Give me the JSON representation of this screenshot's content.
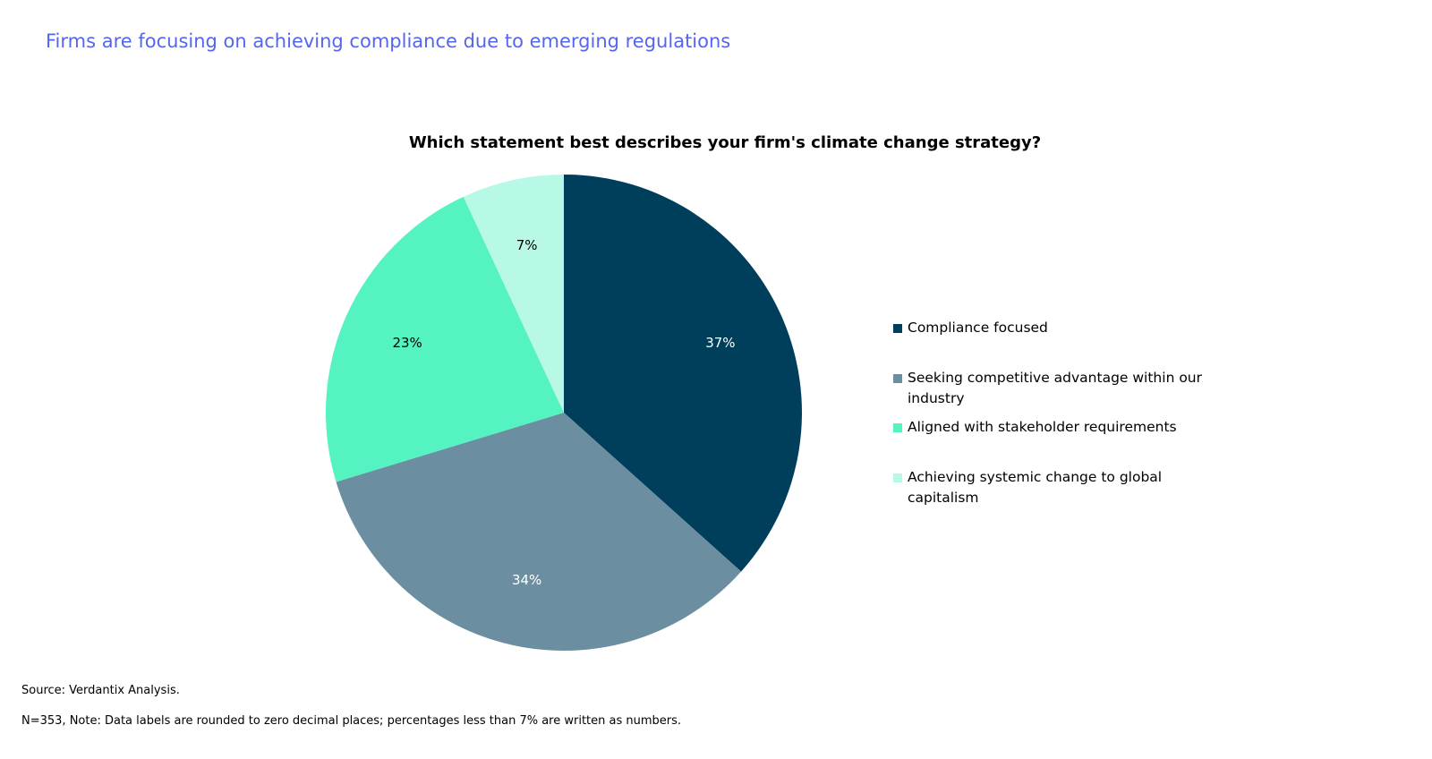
{
  "headline": "Firms are focusing on achieving compliance due to emerging regulations",
  "chart_data": {
    "type": "pie",
    "title": "Which statement best describes your firm's climate change strategy?",
    "categories": [
      "Compliance focused",
      "Seeking competitive advantage within our industry",
      "Aligned with stakeholder requirements",
      "Achieving systemic change to global capitalism"
    ],
    "values": [
      37,
      34,
      23,
      7
    ],
    "data_labels": [
      "37%",
      "34%",
      "23%",
      "7%"
    ],
    "colors": [
      "#003f5c",
      "#6b8fa1",
      "#55f2c2",
      "#b8f8e6"
    ],
    "label_colors": [
      "#ffffff",
      "#ffffff",
      "#000000",
      "#000000"
    ],
    "legend_position": "right"
  },
  "footer": {
    "source": "Source: Verdantix Analysis.",
    "note": "N=353, Note: Data labels are rounded to zero decimal places; percentages less than 7% are written as numbers."
  }
}
